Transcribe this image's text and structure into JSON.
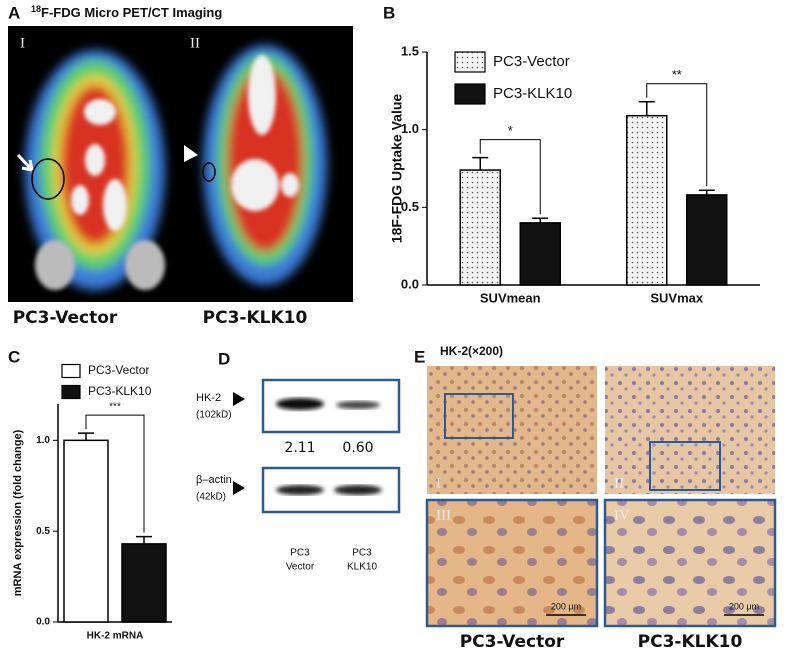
{
  "panel_a": {
    "label": "A",
    "title_sup": "18",
    "title": "F-FDG Micro PET/CT Imaging",
    "subpanels": [
      "I",
      "II"
    ],
    "captions": [
      "PC3-Vector",
      "PC3-KLK10"
    ]
  },
  "chart_data": [
    {
      "type": "bar",
      "panel": "B",
      "categories": [
        "SUVmean",
        "SUVmax"
      ],
      "series": [
        {
          "name": "PC3-Vector",
          "color": "#f4f4f4",
          "pattern": "dots",
          "values": [
            0.74,
            1.09
          ],
          "errors": [
            0.08,
            0.09
          ]
        },
        {
          "name": "PC3-KLK10",
          "color": "#111111",
          "values": [
            0.4,
            0.58
          ],
          "errors": [
            0.03,
            0.03
          ]
        }
      ],
      "ylabel": "18F-FDG Uptake Value",
      "ylim": [
        0,
        1.5
      ],
      "yticks": [
        {
          "value": 0,
          "label": "0.0"
        },
        0.5,
        {
          "value": 1,
          "label": "1.0"
        },
        1.5
      ],
      "annotations": [
        "*",
        "**"
      ],
      "legend": "upper left"
    },
    {
      "type": "bar",
      "panel": "C",
      "categories": [
        "HK-2 mRNA"
      ],
      "series": [
        {
          "name": "PC3-Vector",
          "color": "#ffffff",
          "values": [
            1.0
          ],
          "errors": [
            0.04
          ]
        },
        {
          "name": "PC3-KLK10",
          "color": "#111111",
          "values": [
            0.43
          ],
          "errors": [
            0.04
          ]
        }
      ],
      "ylabel": "mRNA expression (fold change)",
      "ylim": [
        0,
        1.2
      ],
      "yticks": [
        {
          "value": 0,
          "label": "0.0"
        },
        0.5,
        {
          "value": 1,
          "label": "1.0"
        }
      ],
      "annotations": [
        "***"
      ],
      "legend": "upper left"
    }
  ],
  "panel_d": {
    "label": "D",
    "rows": [
      {
        "name": "HK-2",
        "size": "(102kD)"
      },
      {
        "name": "β–actin",
        "size": "(42kD)"
      }
    ],
    "quant": [
      "2.11",
      "0.60"
    ],
    "lanes": [
      [
        "PC3",
        "Vector"
      ],
      [
        "PC3",
        "KLK10"
      ]
    ]
  },
  "panel_e": {
    "label": "E",
    "title": "HK-2(×200)",
    "subpanels": [
      "I",
      "II",
      "III",
      "IV"
    ],
    "scale": [
      "200 μm",
      "200 μm"
    ],
    "captions": [
      "PC3-Vector",
      "PC3-KLK10"
    ]
  }
}
